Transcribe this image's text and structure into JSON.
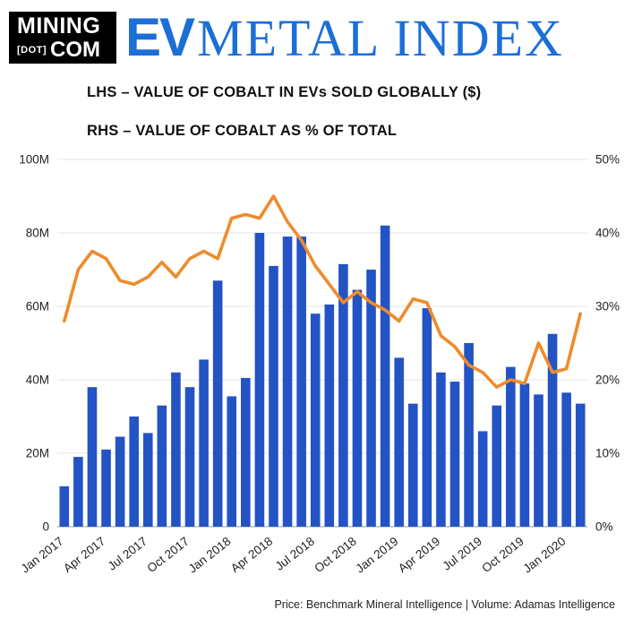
{
  "header": {
    "logo_top": "MINING",
    "logo_dot": "[DOT]",
    "logo_com": "COM",
    "title_bold": "EV",
    "title_serif": "METAL INDEX"
  },
  "subtitles": {
    "lhs": "LHS – VALUE OF COBALT IN EVs SOLD GLOBALLY ($)",
    "rhs": "RHS – VALUE OF COBALT AS % OF TOTAL"
  },
  "footer": {
    "source": "Price: Benchmark Mineral Intelligence | Volume: Adamas Intelligence"
  },
  "colors": {
    "accent_blue": "#1b6fd6",
    "bar": "#2353c4",
    "line": "#ef8b2c",
    "grid": "#e4e4e4"
  },
  "chart_data": {
    "type": "bar",
    "title": "EV METAL INDEX — Cobalt",
    "xlabel": "",
    "ylabel_left": "Value of cobalt in EVs sold globally ($)",
    "ylabel_right": "Value of cobalt as % of total",
    "grid": true,
    "legend_position": "none",
    "categories": [
      "Jan 2017",
      "Feb 2017",
      "Mar 2017",
      "Apr 2017",
      "May 2017",
      "Jun 2017",
      "Jul 2017",
      "Aug 2017",
      "Sep 2017",
      "Oct 2017",
      "Nov 2017",
      "Dec 2017",
      "Jan 2018",
      "Feb 2018",
      "Mar 2018",
      "Apr 2018",
      "May 2018",
      "Jun 2018",
      "Jul 2018",
      "Aug 2018",
      "Sep 2018",
      "Oct 2018",
      "Nov 2018",
      "Dec 2018",
      "Jan 2019",
      "Feb 2019",
      "Mar 2019",
      "Apr 2019",
      "May 2019",
      "Jun 2019",
      "Jul 2019",
      "Aug 2019",
      "Sep 2019",
      "Oct 2019",
      "Nov 2019",
      "Dec 2019",
      "Jan 2020",
      "Feb 2020"
    ],
    "series": [
      {
        "name": "Value of cobalt in EVs sold globally ($, LHS)",
        "type": "bar",
        "axis": "left",
        "unit": "M$",
        "color": "#2353c4",
        "values": [
          11,
          19,
          38,
          21,
          24.5,
          30,
          25.5,
          33,
          42,
          38,
          45.5,
          67,
          35.5,
          40.5,
          80,
          71,
          79,
          79,
          58,
          60.5,
          71.5,
          64.5,
          70,
          82,
          46,
          33.5,
          59.5,
          42,
          39.5,
          50,
          26,
          33,
          43.5,
          39,
          36,
          52.5,
          36.5,
          33.5
        ]
      },
      {
        "name": "Value of cobalt as % of total (RHS)",
        "type": "line",
        "axis": "right",
        "unit": "%",
        "color": "#ef8b2c",
        "values": [
          28,
          35,
          37.5,
          36.5,
          33.5,
          33,
          34,
          36,
          34,
          36.5,
          37.5,
          36.5,
          42,
          42.5,
          42,
          45,
          41.5,
          39,
          35.5,
          33,
          30.5,
          32,
          30.5,
          29.5,
          28,
          31,
          30.5,
          26,
          24.5,
          22,
          21,
          19,
          20,
          19.5,
          25,
          21,
          21.5,
          29
        ]
      }
    ],
    "left_axis": {
      "min": 0,
      "max": 100,
      "ticks": [
        {
          "label": "0",
          "value": 0
        },
        {
          "label": "20M",
          "value": 20
        },
        {
          "label": "40M",
          "value": 40
        },
        {
          "label": "60M",
          "value": 60
        },
        {
          "label": "80M",
          "value": 80
        },
        {
          "label": "100M",
          "value": 100
        }
      ]
    },
    "right_axis": {
      "min": 0,
      "max": 50,
      "ticks": [
        {
          "label": "0%",
          "value": 0
        },
        {
          "label": "10%",
          "value": 10
        },
        {
          "label": "20%",
          "value": 20
        },
        {
          "label": "30%",
          "value": 30
        },
        {
          "label": "40%",
          "value": 40
        },
        {
          "label": "50%",
          "value": 50
        }
      ]
    },
    "x_label_every": 3,
    "visible_x_labels": [
      "Jan 2017",
      "Apr 2017",
      "Jul 2017",
      "Oct 2017",
      "Jan 2018",
      "Apr 2018",
      "Jul 2018",
      "Oct 2018",
      "Jan 2019",
      "Apr 2019",
      "Jul 2019",
      "Oct 2019",
      "Jan 2020"
    ]
  }
}
